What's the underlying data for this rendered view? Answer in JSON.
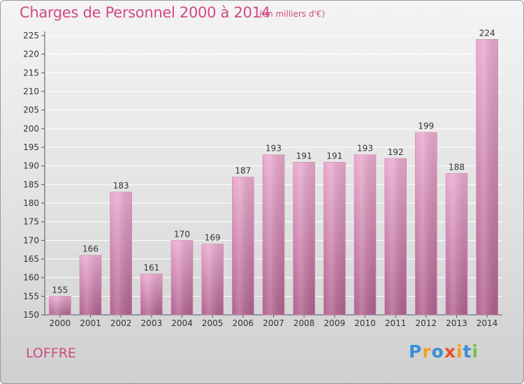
{
  "header": {
    "title": "Charges de Personnel 2000 à 2014",
    "subtitle": "(en milliers d'€)"
  },
  "footer": {
    "commune": "LOFFRE",
    "logo_letters": [
      "P",
      "r",
      "o",
      "x",
      "i",
      "t",
      "i"
    ],
    "logo_colors": [
      "#3a8fd6",
      "#f0a01e",
      "#3a8fd6",
      "#e8502a",
      "#f0a01e",
      "#3a8fd6",
      "#7cc242"
    ]
  },
  "colors": {
    "accent": "#d04a84",
    "bar_top": "#eaa9cf",
    "bar_bottom": "#b0628f",
    "grid": "#ffffff"
  },
  "chart_data": {
    "type": "bar",
    "title": "Charges de Personnel 2000 à 2014",
    "subtitle": "(en milliers d'€)",
    "categories": [
      "2000",
      "2001",
      "2002",
      "2003",
      "2004",
      "2005",
      "2006",
      "2007",
      "2008",
      "2009",
      "2010",
      "2011",
      "2012",
      "2013",
      "2014"
    ],
    "values": [
      155,
      166,
      183,
      161,
      170,
      169,
      187,
      193,
      191,
      191,
      193,
      192,
      199,
      188,
      224
    ],
    "ylim": [
      150,
      225
    ],
    "yticks": [
      150,
      155,
      160,
      165,
      170,
      175,
      180,
      185,
      190,
      195,
      200,
      205,
      210,
      215,
      220,
      225
    ],
    "xlabel": "",
    "ylabel": "",
    "grid": true,
    "data_labels": true
  }
}
